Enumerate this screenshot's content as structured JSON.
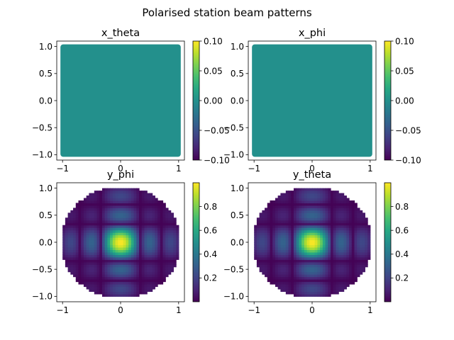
{
  "figure": {
    "title": "Polarised station beam patterns"
  },
  "chart_data": [
    {
      "type": "heatmap",
      "title": "x_theta",
      "xlabel": "",
      "ylabel": "",
      "xlim": [
        -1.1,
        1.1
      ],
      "ylim": [
        -1.1,
        1.1
      ],
      "xticks": [
        -1,
        0,
        1
      ],
      "yticks": [
        1.0,
        0.5,
        0.0,
        -0.5,
        -1.0
      ],
      "ytick_labels": [
        "1.0",
        "0.5",
        "0.0",
        "−0.5",
        "−1.0"
      ],
      "footprint": "square",
      "pattern": "uniform",
      "uniform_value": 0.0,
      "colorbar": {
        "colormap": "viridis",
        "range": [
          -0.1,
          0.1
        ],
        "ticks": [
          0.1,
          0.05,
          0.0,
          -0.05,
          -0.1
        ],
        "tick_labels": [
          "0.10",
          "0.05",
          "0.00",
          "−0.05",
          "−0.10"
        ]
      }
    },
    {
      "type": "heatmap",
      "title": "x_phi",
      "xlabel": "",
      "ylabel": "",
      "xlim": [
        -1.1,
        1.1
      ],
      "ylim": [
        -1.1,
        1.1
      ],
      "xticks": [
        -1,
        0,
        1
      ],
      "yticks": [
        1.0,
        0.5,
        0.0,
        -0.5,
        -1.0
      ],
      "ytick_labels": [
        "1.0",
        "0.5",
        "0.0",
        "−0.5",
        "−1.0"
      ],
      "footprint": "square",
      "pattern": "uniform",
      "uniform_value": 0.0,
      "colorbar": {
        "colormap": "viridis",
        "range": [
          -0.1,
          0.1
        ],
        "ticks": [
          0.1,
          0.05,
          0.0,
          -0.05,
          -0.1
        ],
        "tick_labels": [
          "0.10",
          "0.05",
          "0.00",
          "−0.05",
          "−0.10"
        ]
      }
    },
    {
      "type": "heatmap",
      "title": "y_phi",
      "xlabel": "",
      "ylabel": "",
      "xlim": [
        -1.1,
        1.1
      ],
      "ylim": [
        -1.1,
        1.1
      ],
      "xticks": [
        -1,
        0,
        1
      ],
      "yticks": [
        1.0,
        0.5,
        0.0,
        -0.5,
        -1.0
      ],
      "ytick_labels": [
        "1.0",
        "0.5",
        "0.0",
        "−0.5",
        "−1.0"
      ],
      "footprint": "disc",
      "pattern": "beam",
      "peak": 1.0,
      "colorbar": {
        "colormap": "viridis",
        "range": [
          0.0,
          1.0
        ],
        "ticks": [
          0.8,
          0.6,
          0.4,
          0.2
        ],
        "tick_labels": [
          "0.8",
          "0.6",
          "0.4",
          "0.2"
        ]
      }
    },
    {
      "type": "heatmap",
      "title": "y_theta",
      "xlabel": "",
      "ylabel": "",
      "xlim": [
        -1.1,
        1.1
      ],
      "ylim": [
        -1.1,
        1.1
      ],
      "xticks": [
        -1,
        0,
        1
      ],
      "yticks": [
        1.0,
        0.5,
        0.0,
        -0.5,
        -1.0
      ],
      "ytick_labels": [
        "1.0",
        "0.5",
        "0.0",
        "−0.5",
        "−1.0"
      ],
      "footprint": "disc",
      "pattern": "beam",
      "peak": 1.0,
      "colorbar": {
        "colormap": "viridis",
        "range": [
          0.0,
          1.0
        ],
        "ticks": [
          0.8,
          0.6,
          0.4,
          0.2
        ],
        "tick_labels": [
          "0.8",
          "0.6",
          "0.4",
          "0.2"
        ]
      }
    }
  ]
}
